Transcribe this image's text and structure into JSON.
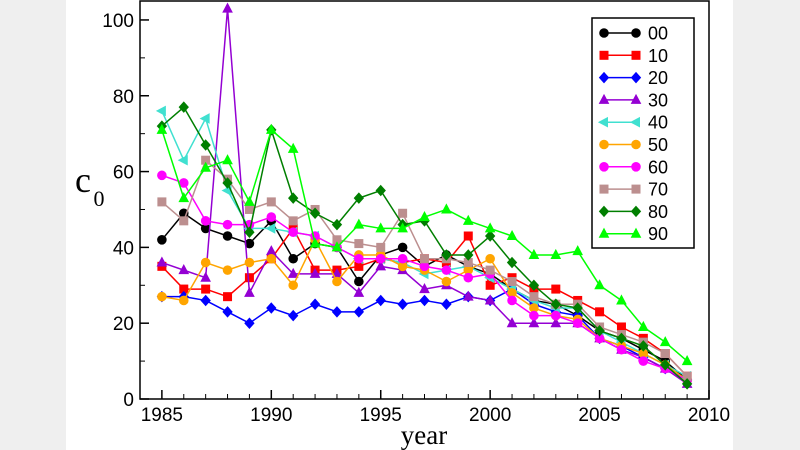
{
  "chart_data": {
    "type": "line",
    "xlabel": "year",
    "ylabel": "c",
    "ylabel_subscript": "0",
    "xlim": [
      1984,
      2010
    ],
    "ylim": [
      0,
      105
    ],
    "xticks": [
      1985,
      1990,
      1995,
      2000,
      2005,
      2010
    ],
    "yticks": [
      0,
      20,
      40,
      60,
      80,
      100
    ],
    "grid": false,
    "legend": "top-right",
    "series": [
      {
        "name": "00",
        "color": "#000000",
        "marker": "circle",
        "x": [
          1985,
          1986,
          1987,
          1988,
          1989,
          1990,
          1991,
          1992,
          1993,
          1994,
          1995,
          1996,
          1997,
          1998,
          1999,
          2000,
          2001,
          2002,
          2003,
          2004,
          2005,
          2006,
          2007,
          2008,
          2009
        ],
        "values": [
          42,
          49,
          45,
          43,
          41,
          47,
          37,
          41,
          40,
          31,
          38,
          40,
          35,
          38,
          35,
          33,
          29,
          26,
          25,
          22,
          18,
          16,
          13,
          10,
          5
        ]
      },
      {
        "name": "10",
        "color": "#ff0000",
        "marker": "square",
        "x": [
          1985,
          1986,
          1987,
          1988,
          1989,
          1990,
          1991,
          1992,
          1993,
          1994,
          1995,
          1996,
          1997,
          1998,
          1999,
          2000,
          2001,
          2002,
          2003,
          2004,
          2005,
          2006,
          2007,
          2008,
          2009
        ],
        "values": [
          35,
          29,
          29,
          27,
          32,
          37,
          45,
          34,
          34,
          35,
          37,
          36,
          37,
          36,
          43,
          30,
          32,
          29,
          29,
          26,
          23,
          19,
          16,
          12,
          6
        ]
      },
      {
        "name": "20",
        "color": "#0000ff",
        "marker": "diamond",
        "x": [
          1985,
          1986,
          1987,
          1988,
          1989,
          1990,
          1991,
          1992,
          1993,
          1994,
          1995,
          1996,
          1997,
          1998,
          1999,
          2000,
          2001,
          2002,
          2003,
          2004,
          2005,
          2006,
          2007,
          2008,
          2009
        ],
        "values": [
          27,
          27,
          26,
          23,
          20,
          24,
          22,
          25,
          23,
          23,
          26,
          25,
          26,
          25,
          27,
          26,
          29,
          25,
          23,
          22,
          16,
          14,
          11,
          8,
          5
        ]
      },
      {
        "name": "30",
        "color": "#9400d3",
        "marker": "triangle-up",
        "x": [
          1985,
          1986,
          1987,
          1988,
          1989,
          1990,
          1991,
          1992,
          1993,
          1994,
          1995,
          1996,
          1997,
          1998,
          1999,
          2000,
          2001,
          2002,
          2003,
          2004,
          2005,
          2006,
          2007,
          2008,
          2009
        ],
        "values": [
          36,
          34,
          32,
          103,
          28,
          39,
          33,
          33,
          33,
          28,
          35,
          34,
          29,
          30,
          27,
          26,
          20,
          20,
          20,
          20,
          16,
          13,
          11,
          8,
          4
        ]
      },
      {
        "name": "40",
        "color": "#40e0d0",
        "marker": "triangle-left",
        "x": [
          1985,
          1986,
          1987,
          1988,
          1989,
          1990,
          1991,
          1992,
          1993,
          1994,
          1995,
          1996,
          1997,
          1998,
          1999,
          2000,
          2001,
          2002,
          2003,
          2004,
          2005,
          2006,
          2007,
          2008,
          2009
        ],
        "values": [
          76,
          63,
          74,
          55,
          45,
          45,
          44,
          43,
          40,
          37,
          37,
          36,
          33,
          34,
          35,
          32,
          29,
          26,
          24,
          24,
          18,
          15,
          12,
          9,
          6
        ]
      },
      {
        "name": "50",
        "color": "#ffa500",
        "marker": "circle",
        "x": [
          1985,
          1986,
          1987,
          1988,
          1989,
          1990,
          1991,
          1992,
          1993,
          1994,
          1995,
          1996,
          1997,
          1998,
          1999,
          2000,
          2001,
          2002,
          2003,
          2004,
          2005,
          2006,
          2007,
          2008,
          2009
        ],
        "values": [
          27,
          26,
          36,
          34,
          36,
          37,
          30,
          42,
          31,
          38,
          38,
          35,
          34,
          31,
          34,
          37,
          28,
          24,
          22,
          21,
          16,
          14,
          12,
          9,
          5
        ]
      },
      {
        "name": "60",
        "color": "#ff00ff",
        "marker": "circle",
        "x": [
          1985,
          1986,
          1987,
          1988,
          1989,
          1990,
          1991,
          1992,
          1993,
          1994,
          1995,
          1996,
          1997,
          1998,
          1999,
          2000,
          2001,
          2002,
          2003,
          2004,
          2005,
          2006,
          2007,
          2008,
          2009
        ],
        "values": [
          59,
          57,
          47,
          46,
          46,
          48,
          44,
          43,
          40,
          37,
          37,
          37,
          35,
          34,
          32,
          33,
          26,
          22,
          22,
          20,
          16,
          13,
          10,
          8,
          5
        ]
      },
      {
        "name": "70",
        "color": "#bc8f8f",
        "marker": "square",
        "x": [
          1985,
          1986,
          1987,
          1988,
          1989,
          1990,
          1991,
          1992,
          1993,
          1994,
          1995,
          1996,
          1997,
          1998,
          1999,
          2000,
          2001,
          2002,
          2003,
          2004,
          2005,
          2006,
          2007,
          2008,
          2009
        ],
        "values": [
          52,
          47,
          63,
          58,
          50,
          52,
          47,
          50,
          42,
          41,
          40,
          49,
          37,
          37,
          36,
          34,
          31,
          27,
          25,
          25,
          19,
          17,
          15,
          12,
          6
        ]
      },
      {
        "name": "80",
        "color": "#007f00",
        "marker": "diamond",
        "x": [
          1985,
          1986,
          1987,
          1988,
          1989,
          1990,
          1991,
          1992,
          1993,
          1994,
          1995,
          1996,
          1997,
          1998,
          1999,
          2000,
          2001,
          2002,
          2003,
          2004,
          2005,
          2006,
          2007,
          2008,
          2009
        ],
        "values": [
          72,
          77,
          67,
          57,
          44,
          71,
          53,
          49,
          46,
          53,
          55,
          46,
          47,
          38,
          38,
          43,
          36,
          30,
          25,
          24,
          18,
          16,
          14,
          9,
          4
        ]
      },
      {
        "name": "90",
        "color": "#00ff00",
        "marker": "triangle-up",
        "x": [
          1985,
          1986,
          1987,
          1988,
          1989,
          1990,
          1991,
          1992,
          1993,
          1994,
          1995,
          1996,
          1997,
          1998,
          1999,
          2000,
          2001,
          2002,
          2003,
          2004,
          2005,
          2006,
          2007,
          2008,
          2009
        ],
        "values": [
          71,
          53,
          61,
          63,
          52,
          71,
          66,
          41,
          40,
          46,
          45,
          45,
          48,
          50,
          47,
          45,
          43,
          38,
          38,
          39,
          30,
          26,
          19,
          15,
          10
        ]
      }
    ]
  }
}
